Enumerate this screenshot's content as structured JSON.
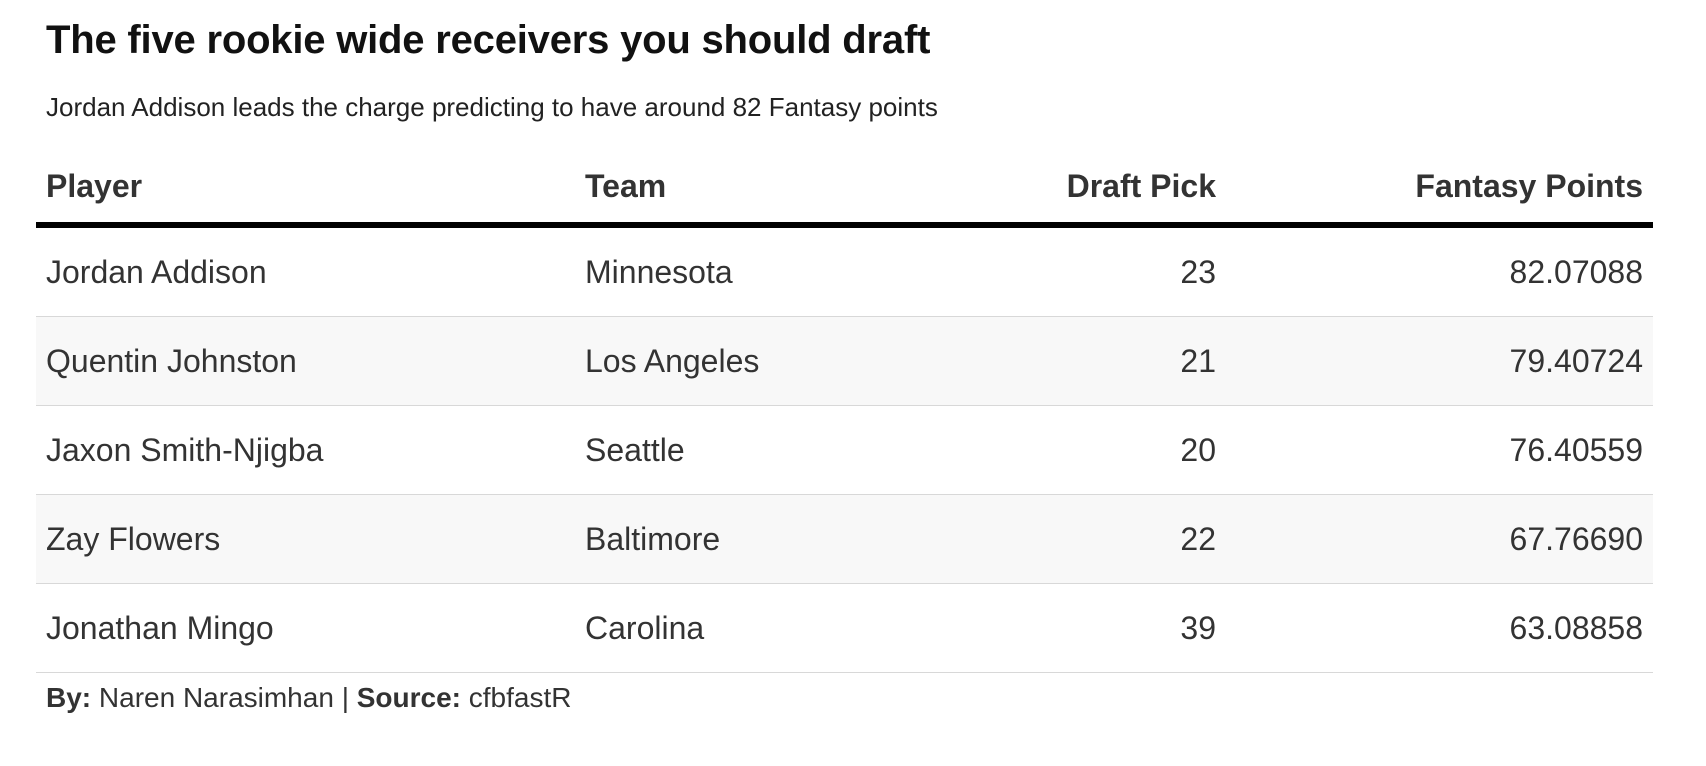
{
  "header": {
    "title": "The five rookie wide receivers you should draft",
    "subtitle": "Jordan Addison leads the charge predicting to have around 82 Fantasy points"
  },
  "chart_data": {
    "type": "table",
    "columns": [
      "Player",
      "Team",
      "Draft Pick",
      "Fantasy Points"
    ],
    "rows": [
      {
        "player": "Jordan Addison",
        "team": "Minnesota",
        "draft_pick": "23",
        "fantasy_points": "82.07088"
      },
      {
        "player": "Quentin Johnston",
        "team": "Los Angeles",
        "draft_pick": "21",
        "fantasy_points": "79.40724"
      },
      {
        "player": "Jaxon Smith-Njigba",
        "team": "Seattle",
        "draft_pick": "20",
        "fantasy_points": "76.40559"
      },
      {
        "player": "Zay Flowers",
        "team": "Baltimore",
        "draft_pick": "22",
        "fantasy_points": "67.76690"
      },
      {
        "player": "Jonathan Mingo",
        "team": "Carolina",
        "draft_pick": "39",
        "fantasy_points": "63.08858"
      }
    ]
  },
  "footer": {
    "by_label": "By:",
    "by_value": "Naren Narasimhan",
    "separator": "|",
    "source_label": "Source:",
    "source_value": "cfbfastR"
  }
}
